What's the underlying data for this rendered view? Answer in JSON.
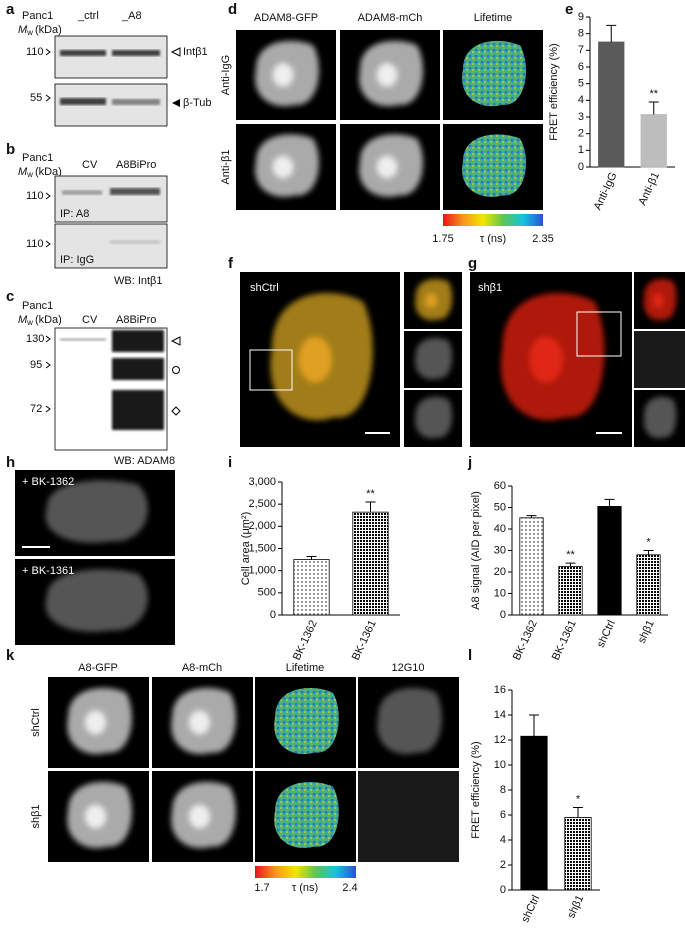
{
  "figure": {
    "a": {
      "label": "a",
      "cell": "Panc1",
      "mw": {
        "m": "M",
        "sub": "w",
        "unit": "(kDa)"
      },
      "lanes": [
        "_ctrl",
        "_A8"
      ],
      "markers": [
        "110",
        "55"
      ],
      "bands": [
        "Intβ1",
        "β-Tub"
      ]
    },
    "b": {
      "label": "b",
      "cell": "Panc1",
      "mw": {
        "m": "M",
        "sub": "w",
        "unit": "(kDa)"
      },
      "lanes": [
        "CV",
        "A8BiPro"
      ],
      "markers": [
        "110",
        "110"
      ],
      "ip": [
        "IP: A8",
        "IP: IgG"
      ],
      "wb": "WB: Intβ1"
    },
    "c": {
      "label": "c",
      "cell": "Panc1",
      "mw": {
        "m": "M",
        "sub": "w",
        "unit": "(kDa)"
      },
      "lanes": [
        "CV",
        "A8BiPro"
      ],
      "markers": [
        "130",
        "95",
        "72"
      ],
      "wb": "WB: ADAM8"
    },
    "d": {
      "label": "d",
      "columns": [
        "ADAM8-GFP",
        "ADAM8-mCh",
        "Lifetime"
      ],
      "rows": [
        "Anti-IgG",
        "Anti-β1"
      ],
      "scale": {
        "min": "1.75",
        "unit": "τ (ns)",
        "max": "2.35"
      }
    },
    "f": {
      "label": "f",
      "name": "shCtrl"
    },
    "g": {
      "label": "g",
      "name": "shβ1"
    },
    "h": {
      "label": "h",
      "rows": [
        "+ BK-1362",
        "+ BK-1361"
      ]
    },
    "k": {
      "label": "k",
      "columns": [
        "A8-GFP",
        "A8-mCh",
        "Lifetime",
        "12G10"
      ],
      "rows": [
        "shCtrl",
        "shβ1"
      ],
      "scale": {
        "min": "1.7",
        "unit": "τ (ns)",
        "max": "2.4"
      }
    }
  },
  "chart_data": [
    {
      "type": "bar",
      "panel": "e",
      "ylabel": "FRET efficiency (%)",
      "categories": [
        "Anti-IgG",
        "Anti-β1"
      ],
      "values": [
        7.5,
        3.15
      ],
      "errors": [
        1.0,
        0.75
      ],
      "colors": [
        "#5a5a5a",
        "#bdbdbd"
      ],
      "patterns": [
        "solid",
        "solid"
      ],
      "annotations": [
        {
          "category": "Anti-β1",
          "text": "**"
        }
      ],
      "ylim": [
        0,
        9
      ],
      "yticks": [
        0,
        1,
        2,
        3,
        4,
        5,
        6,
        7,
        8,
        9
      ]
    },
    {
      "type": "bar",
      "panel": "i",
      "ylabel": "Cell area (μm²)",
      "categories": [
        "BK-1362",
        "BK-1361"
      ],
      "values": [
        1250,
        2320
      ],
      "errors": [
        70,
        230
      ],
      "colors": [
        "#000000",
        "#000000"
      ],
      "patterns": [
        "dots",
        "checker"
      ],
      "annotations": [
        {
          "category": "BK-1361",
          "text": "**"
        }
      ],
      "ylim": [
        0,
        3000
      ],
      "yticks": [
        0,
        500,
        {
          "value": 1000,
          "label": "1,000"
        },
        {
          "value": 1500,
          "label": "1,500"
        },
        {
          "value": 2000,
          "label": "2,000"
        },
        {
          "value": 2500,
          "label": "2,500"
        },
        {
          "value": 3000,
          "label": "3,000"
        }
      ]
    },
    {
      "type": "bar",
      "panel": "j",
      "ylabel": "A8 signal (AID per pixel)",
      "categories": [
        "BK-1362",
        "BK-1361",
        "shCtrl",
        "shβ1"
      ],
      "values": [
        45.2,
        22.6,
        50.5,
        28
      ],
      "errors": [
        1,
        1.5,
        3.3,
        2
      ],
      "colors": [
        "#000000",
        "#000000",
        "#000000",
        "#000000"
      ],
      "patterns": [
        "dots",
        "checker",
        "solid",
        "checker"
      ],
      "annotations": [
        {
          "category": "BK-1361",
          "text": "**"
        },
        {
          "category": "shβ1",
          "text": "*"
        }
      ],
      "ylim": [
        0,
        60
      ],
      "yticks": [
        0,
        10,
        20,
        30,
        40,
        50,
        60
      ]
    },
    {
      "type": "bar",
      "panel": "l",
      "ylabel": "FRET efficiency (%)",
      "categories": [
        "shCtrl",
        "shβ1"
      ],
      "values": [
        12.3,
        5.8
      ],
      "errors": [
        1.7,
        0.8
      ],
      "colors": [
        "#000000",
        "#000000"
      ],
      "patterns": [
        "solid",
        "checker"
      ],
      "annotations": [
        {
          "category": "shβ1",
          "text": "*"
        }
      ],
      "ylim": [
        0,
        16
      ],
      "yticks": [
        0,
        2,
        4,
        6,
        8,
        10,
        12,
        14,
        16
      ]
    }
  ]
}
